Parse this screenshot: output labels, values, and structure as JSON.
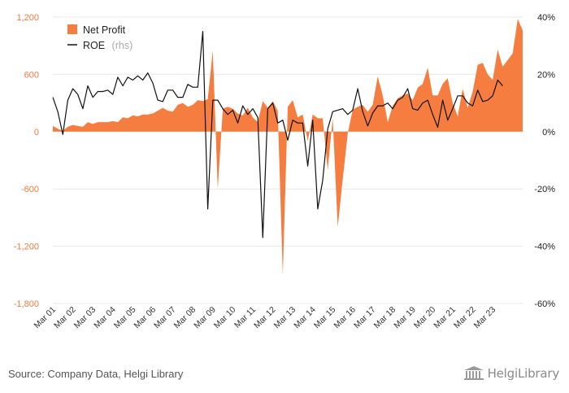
{
  "chart_data": {
    "type": "area",
    "title": "",
    "xlabel": "",
    "ylabel": "",
    "ylim": [
      -1800,
      1200
    ],
    "y2lim": [
      -60,
      40
    ],
    "left_ticks": [
      "1,200",
      "600",
      "0",
      "-600",
      "-1,200",
      "-1,800"
    ],
    "left_tick_values": [
      1200,
      600,
      0,
      -600,
      -1200,
      -1800
    ],
    "right_ticks": [
      "40%",
      "20%",
      "0%",
      "-20%",
      "-40%",
      "-60%"
    ],
    "right_tick_values": [
      40,
      20,
      0,
      -20,
      -40,
      -60
    ],
    "x_ticks": [
      "Mar 01",
      "Mar 02",
      "Mar 03",
      "Mar 04",
      "Mar 05",
      "Mar 06",
      "Mar 07",
      "Mar 08",
      "Mar 09",
      "Mar 10",
      "Mar 11",
      "Mar 12",
      "Mar 13",
      "Mar 14",
      "Mar 15",
      "Mar 16",
      "Mar 17",
      "Mar 18",
      "Mar 19",
      "Mar 20",
      "Mar 21",
      "Mar 22",
      "Mar 23"
    ],
    "legend_position": "top-left",
    "grid": "horizontal",
    "series": [
      {
        "name": "Net Profit",
        "kind": "area",
        "axis": "left",
        "color": "#f47d3f",
        "values": [
          60,
          30,
          10,
          50,
          70,
          60,
          50,
          100,
          80,
          100,
          100,
          100,
          110,
          100,
          150,
          140,
          170,
          160,
          180,
          180,
          190,
          220,
          250,
          220,
          210,
          280,
          300,
          260,
          280,
          330,
          320,
          340,
          850,
          -600,
          240,
          260,
          240,
          190,
          170,
          250,
          150,
          100,
          320,
          250,
          320,
          220,
          -1500,
          260,
          330,
          150,
          180,
          -100,
          180,
          140,
          140,
          -400,
          140,
          -1000,
          -500,
          -20,
          230,
          260,
          280,
          210,
          280,
          580,
          380,
          100,
          270,
          350,
          380,
          400,
          330,
          460,
          500,
          670,
          380,
          380,
          500,
          560,
          300,
          160,
          450,
          250,
          420,
          700,
          720,
          600,
          540,
          860,
          680,
          750,
          820,
          1180,
          1060
        ],
        "start": "Mar 01",
        "frequency": "quarterly"
      },
      {
        "name": "ROE",
        "name_suffix": "(rhs)",
        "kind": "line",
        "axis": "right",
        "color": "#111111",
        "values": [
          12,
          7,
          -1,
          11,
          15,
          13,
          8,
          16,
          12,
          14,
          14,
          14.5,
          13,
          19,
          16,
          19,
          18,
          19.5,
          18,
          20.5,
          17,
          11,
          10.5,
          14.5,
          14.5,
          12,
          12,
          16.5,
          15.5,
          15.5,
          35,
          -27,
          11,
          11,
          8,
          6,
          7.5,
          3,
          9,
          6,
          8,
          5,
          -37,
          8,
          10,
          3,
          4,
          -3,
          4,
          3,
          3,
          -12,
          4,
          -27,
          -17,
          1,
          7,
          7.5,
          8,
          6,
          7.5,
          15,
          7,
          2,
          6.5,
          9,
          9,
          10,
          8,
          11,
          12,
          15,
          8,
          7.5,
          10,
          11,
          6,
          1.5,
          11,
          4,
          8,
          12.5,
          12.5,
          10,
          9,
          14.5,
          10.5,
          11,
          12.5,
          18,
          16
        ],
        "start": "Mar 01",
        "frequency": "quarterly"
      }
    ]
  },
  "footer": {
    "source": "Source: Company Data, Helgi Library",
    "brand": "HelgiLibrary"
  },
  "colors": {
    "area": "#f47d3f",
    "line": "#111111",
    "left_axis_text": "#f07a3e",
    "grid": "#e8e8e8"
  }
}
